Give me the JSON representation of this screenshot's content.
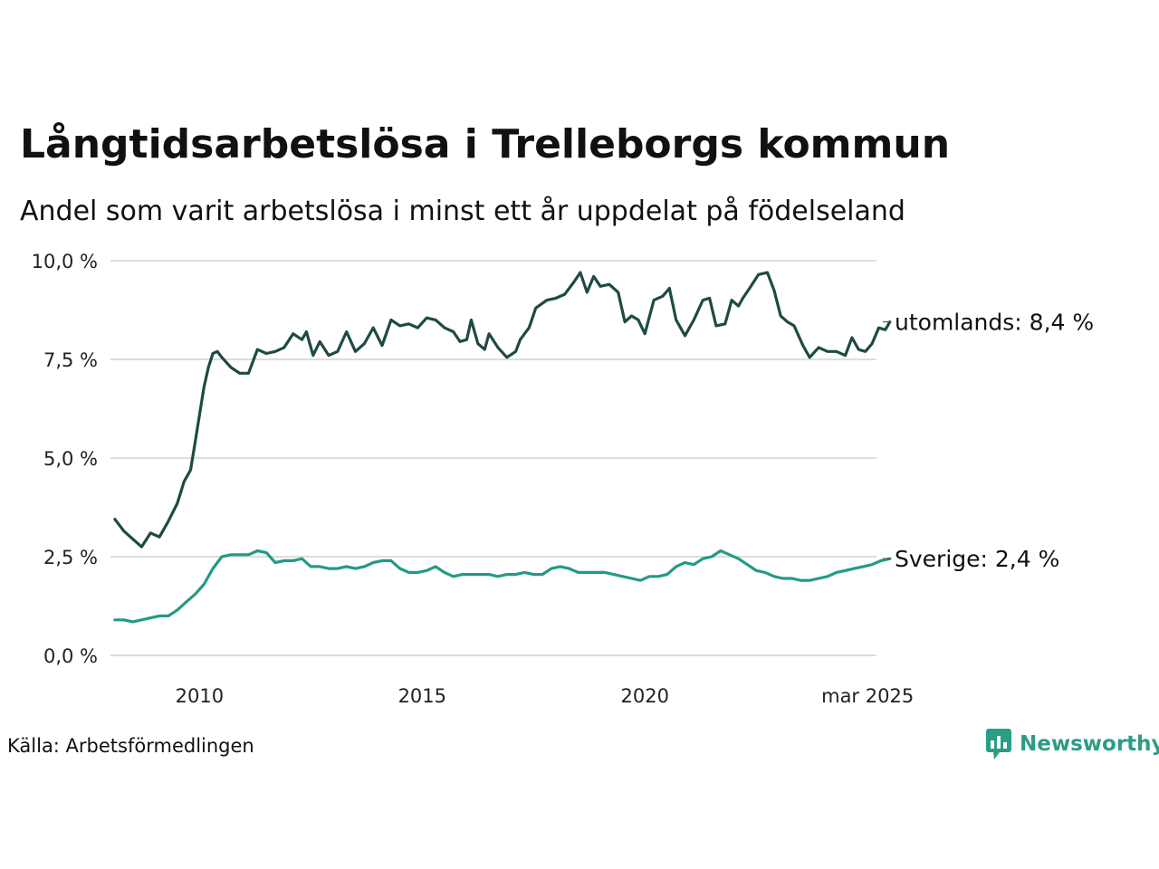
{
  "title": "Långtidsarbetslösa i Trelleborgs kommun",
  "subtitle": "Andel som varit arbetslösa i minst ett år uppdelat på födelseland",
  "source": "Källa: Arbetsförmedlingen",
  "brand": {
    "name": "Newsworthy",
    "icon": "newsworthy-logo-icon",
    "color": "#2a9d86"
  },
  "chart_data": {
    "type": "line",
    "x_unit": "year",
    "xlim": [
      2008.0,
      2025.2
    ],
    "ylim": [
      0,
      10
    ],
    "y_ticks": [
      {
        "value": 0,
        "label": "0,0 %"
      },
      {
        "value": 2.5,
        "label": "2,5 %"
      },
      {
        "value": 5,
        "label": "5,0 %"
      },
      {
        "value": 7.5,
        "label": "7,5 %"
      },
      {
        "value": 10,
        "label": "10,0 %"
      }
    ],
    "x_ticks": [
      {
        "value": 2010,
        "label": "2010"
      },
      {
        "value": 2015,
        "label": "2015"
      },
      {
        "value": 2020,
        "label": "2020"
      },
      {
        "value": 2025,
        "label": "mar 2025"
      }
    ],
    "grid": "horizontal",
    "series": [
      {
        "name": "utomlands",
        "end_label": "utomlands: 8,4 %",
        "color": "#1f4a44",
        "points": [
          [
            2008.1,
            3.45
          ],
          [
            2008.3,
            3.15
          ],
          [
            2008.5,
            2.95
          ],
          [
            2008.7,
            2.75
          ],
          [
            2008.9,
            3.1
          ],
          [
            2009.1,
            3.0
          ],
          [
            2009.3,
            3.4
          ],
          [
            2009.5,
            3.85
          ],
          [
            2009.65,
            4.4
          ],
          [
            2009.8,
            4.7
          ],
          [
            2009.9,
            5.4
          ],
          [
            2010.0,
            6.1
          ],
          [
            2010.1,
            6.8
          ],
          [
            2010.2,
            7.3
          ],
          [
            2010.3,
            7.65
          ],
          [
            2010.4,
            7.7
          ],
          [
            2010.5,
            7.55
          ],
          [
            2010.7,
            7.3
          ],
          [
            2010.9,
            7.15
          ],
          [
            2011.1,
            7.15
          ],
          [
            2011.3,
            7.75
          ],
          [
            2011.5,
            7.65
          ],
          [
            2011.7,
            7.7
          ],
          [
            2011.9,
            7.8
          ],
          [
            2012.1,
            8.15
          ],
          [
            2012.3,
            8.0
          ],
          [
            2012.4,
            8.2
          ],
          [
            2012.55,
            7.6
          ],
          [
            2012.7,
            7.95
          ],
          [
            2012.9,
            7.6
          ],
          [
            2013.1,
            7.7
          ],
          [
            2013.3,
            8.2
          ],
          [
            2013.5,
            7.7
          ],
          [
            2013.7,
            7.9
          ],
          [
            2013.9,
            8.3
          ],
          [
            2014.1,
            7.85
          ],
          [
            2014.3,
            8.5
          ],
          [
            2014.5,
            8.35
          ],
          [
            2014.7,
            8.4
          ],
          [
            2014.9,
            8.3
          ],
          [
            2015.1,
            8.55
          ],
          [
            2015.3,
            8.5
          ],
          [
            2015.5,
            8.3
          ],
          [
            2015.7,
            8.2
          ],
          [
            2015.85,
            7.95
          ],
          [
            2016.0,
            8.0
          ],
          [
            2016.1,
            8.5
          ],
          [
            2016.25,
            7.9
          ],
          [
            2016.4,
            7.75
          ],
          [
            2016.5,
            8.15
          ],
          [
            2016.7,
            7.8
          ],
          [
            2016.9,
            7.55
          ],
          [
            2017.1,
            7.7
          ],
          [
            2017.2,
            8.0
          ],
          [
            2017.4,
            8.3
          ],
          [
            2017.55,
            8.8
          ],
          [
            2017.8,
            9.0
          ],
          [
            2018.0,
            9.05
          ],
          [
            2018.2,
            9.15
          ],
          [
            2018.4,
            9.45
          ],
          [
            2018.55,
            9.7
          ],
          [
            2018.7,
            9.2
          ],
          [
            2018.85,
            9.6
          ],
          [
            2019.0,
            9.35
          ],
          [
            2019.2,
            9.4
          ],
          [
            2019.4,
            9.2
          ],
          [
            2019.55,
            8.45
          ],
          [
            2019.7,
            8.6
          ],
          [
            2019.85,
            8.5
          ],
          [
            2020.0,
            8.15
          ],
          [
            2020.2,
            9.0
          ],
          [
            2020.4,
            9.1
          ],
          [
            2020.55,
            9.3
          ],
          [
            2020.7,
            8.5
          ],
          [
            2020.9,
            8.1
          ],
          [
            2021.1,
            8.5
          ],
          [
            2021.3,
            9.0
          ],
          [
            2021.45,
            9.05
          ],
          [
            2021.6,
            8.35
          ],
          [
            2021.8,
            8.4
          ],
          [
            2021.95,
            9.0
          ],
          [
            2022.1,
            8.85
          ],
          [
            2022.2,
            9.05
          ],
          [
            2022.35,
            9.3
          ],
          [
            2022.55,
            9.65
          ],
          [
            2022.75,
            9.7
          ],
          [
            2022.9,
            9.25
          ],
          [
            2023.05,
            8.6
          ],
          [
            2023.2,
            8.45
          ],
          [
            2023.35,
            8.35
          ],
          [
            2023.55,
            7.85
          ],
          [
            2023.7,
            7.55
          ],
          [
            2023.9,
            7.8
          ],
          [
            2024.1,
            7.7
          ],
          [
            2024.3,
            7.7
          ],
          [
            2024.5,
            7.6
          ],
          [
            2024.65,
            8.05
          ],
          [
            2024.8,
            7.75
          ],
          [
            2024.95,
            7.7
          ],
          [
            2025.1,
            7.9
          ],
          [
            2025.25,
            8.3
          ],
          [
            2025.4,
            8.25
          ],
          [
            2025.5,
            8.45
          ]
        ]
      },
      {
        "name": "Sverige",
        "end_label": "Sverige: 2,4 %",
        "color": "#239a86",
        "points": [
          [
            2008.1,
            0.9
          ],
          [
            2008.3,
            0.9
          ],
          [
            2008.5,
            0.85
          ],
          [
            2008.7,
            0.9
          ],
          [
            2008.9,
            0.95
          ],
          [
            2009.1,
            1.0
          ],
          [
            2009.3,
            1.0
          ],
          [
            2009.5,
            1.15
          ],
          [
            2009.7,
            1.35
          ],
          [
            2009.9,
            1.55
          ],
          [
            2010.1,
            1.8
          ],
          [
            2010.3,
            2.2
          ],
          [
            2010.5,
            2.5
          ],
          [
            2010.7,
            2.55
          ],
          [
            2010.9,
            2.55
          ],
          [
            2011.1,
            2.55
          ],
          [
            2011.3,
            2.65
          ],
          [
            2011.5,
            2.6
          ],
          [
            2011.7,
            2.35
          ],
          [
            2011.9,
            2.4
          ],
          [
            2012.1,
            2.4
          ],
          [
            2012.3,
            2.45
          ],
          [
            2012.5,
            2.25
          ],
          [
            2012.7,
            2.25
          ],
          [
            2012.9,
            2.2
          ],
          [
            2013.1,
            2.2
          ],
          [
            2013.3,
            2.25
          ],
          [
            2013.5,
            2.2
          ],
          [
            2013.7,
            2.25
          ],
          [
            2013.9,
            2.35
          ],
          [
            2014.1,
            2.4
          ],
          [
            2014.3,
            2.4
          ],
          [
            2014.5,
            2.2
          ],
          [
            2014.7,
            2.1
          ],
          [
            2014.9,
            2.1
          ],
          [
            2015.1,
            2.15
          ],
          [
            2015.3,
            2.25
          ],
          [
            2015.5,
            2.1
          ],
          [
            2015.7,
            2.0
          ],
          [
            2015.9,
            2.05
          ],
          [
            2016.1,
            2.05
          ],
          [
            2016.3,
            2.05
          ],
          [
            2016.5,
            2.05
          ],
          [
            2016.7,
            2.0
          ],
          [
            2016.9,
            2.05
          ],
          [
            2017.1,
            2.05
          ],
          [
            2017.3,
            2.1
          ],
          [
            2017.5,
            2.05
          ],
          [
            2017.7,
            2.05
          ],
          [
            2017.9,
            2.2
          ],
          [
            2018.1,
            2.25
          ],
          [
            2018.3,
            2.2
          ],
          [
            2018.5,
            2.1
          ],
          [
            2018.7,
            2.1
          ],
          [
            2018.9,
            2.1
          ],
          [
            2019.1,
            2.1
          ],
          [
            2019.3,
            2.05
          ],
          [
            2019.5,
            2.0
          ],
          [
            2019.7,
            1.95
          ],
          [
            2019.9,
            1.9
          ],
          [
            2020.1,
            2.0
          ],
          [
            2020.3,
            2.0
          ],
          [
            2020.5,
            2.05
          ],
          [
            2020.7,
            2.25
          ],
          [
            2020.9,
            2.35
          ],
          [
            2021.1,
            2.3
          ],
          [
            2021.3,
            2.45
          ],
          [
            2021.5,
            2.5
          ],
          [
            2021.7,
            2.65
          ],
          [
            2021.9,
            2.55
          ],
          [
            2022.1,
            2.45
          ],
          [
            2022.3,
            2.3
          ],
          [
            2022.5,
            2.15
          ],
          [
            2022.7,
            2.1
          ],
          [
            2022.9,
            2.0
          ],
          [
            2023.1,
            1.95
          ],
          [
            2023.3,
            1.95
          ],
          [
            2023.5,
            1.9
          ],
          [
            2023.7,
            1.9
          ],
          [
            2023.9,
            1.95
          ],
          [
            2024.1,
            2.0
          ],
          [
            2024.3,
            2.1
          ],
          [
            2024.5,
            2.15
          ],
          [
            2024.7,
            2.2
          ],
          [
            2024.9,
            2.25
          ],
          [
            2025.1,
            2.3
          ],
          [
            2025.3,
            2.4
          ],
          [
            2025.5,
            2.45
          ]
        ]
      }
    ]
  }
}
